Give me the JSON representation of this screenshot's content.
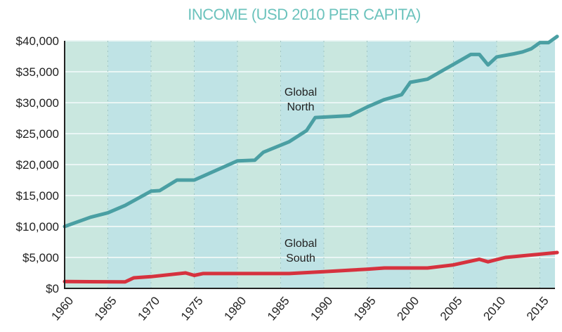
{
  "chart_data": {
    "type": "line",
    "title": "INCOME  (USD 2010 PER CAPITA)",
    "xlabel": "",
    "ylabel": "",
    "xlim": [
      1960,
      2017
    ],
    "ylim": [
      0,
      40000
    ],
    "yticks": [
      0,
      5000,
      10000,
      15000,
      20000,
      25000,
      30000,
      35000,
      40000
    ],
    "ytick_labels": [
      "$0",
      "$5,000",
      "$10,000",
      "$15,000",
      "$20,000",
      "$25,000",
      "$30,000",
      "$35,000",
      "$40,000"
    ],
    "xticks": [
      1960,
      1965,
      1970,
      1975,
      1980,
      1985,
      1990,
      1995,
      2000,
      2005,
      2010,
      2015
    ],
    "xtick_labels": [
      "1960",
      "1965",
      "1970",
      "1975",
      "1980",
      "1985",
      "1990",
      "1995",
      "2000",
      "2005",
      "2010",
      "2015"
    ],
    "grid": true,
    "series": [
      {
        "name": "Global North",
        "label_lines": [
          "Global",
          "North"
        ],
        "color": "#4a9fa3",
        "x": [
          1960,
          1963,
          1965,
          1967,
          1970,
          1971,
          1973,
          1975,
          1980,
          1982,
          1983,
          1986,
          1988,
          1989,
          1993,
          1995,
          1997,
          1999,
          2000,
          2002,
          2007,
          2008,
          2009,
          2010,
          2012,
          2013,
          2014,
          2015,
          2016,
          2017
        ],
        "y": [
          10000,
          11500,
          12200,
          13400,
          15700,
          15800,
          17500,
          17500,
          20600,
          20700,
          22000,
          23700,
          25500,
          27600,
          27900,
          29300,
          30500,
          31300,
          33300,
          33800,
          37800,
          37800,
          36100,
          37400,
          37900,
          38200,
          38700,
          39700,
          39700,
          40700
        ]
      },
      {
        "name": "Global South",
        "label_lines": [
          "Global",
          "South"
        ],
        "color": "#d6323e",
        "x": [
          1960,
          1967,
          1968,
          1970,
          1974,
          1975,
          1976,
          1986,
          1990,
          1995,
          1997,
          2002,
          2005,
          2008,
          2009,
          2011,
          2017
        ],
        "y": [
          1100,
          1050,
          1700,
          1900,
          2500,
          2100,
          2400,
          2400,
          2700,
          3100,
          3300,
          3300,
          3800,
          4700,
          4300,
          5000,
          5800
        ]
      }
    ],
    "band_colors": [
      "#c9e7df",
      "#bfe3e5"
    ]
  }
}
